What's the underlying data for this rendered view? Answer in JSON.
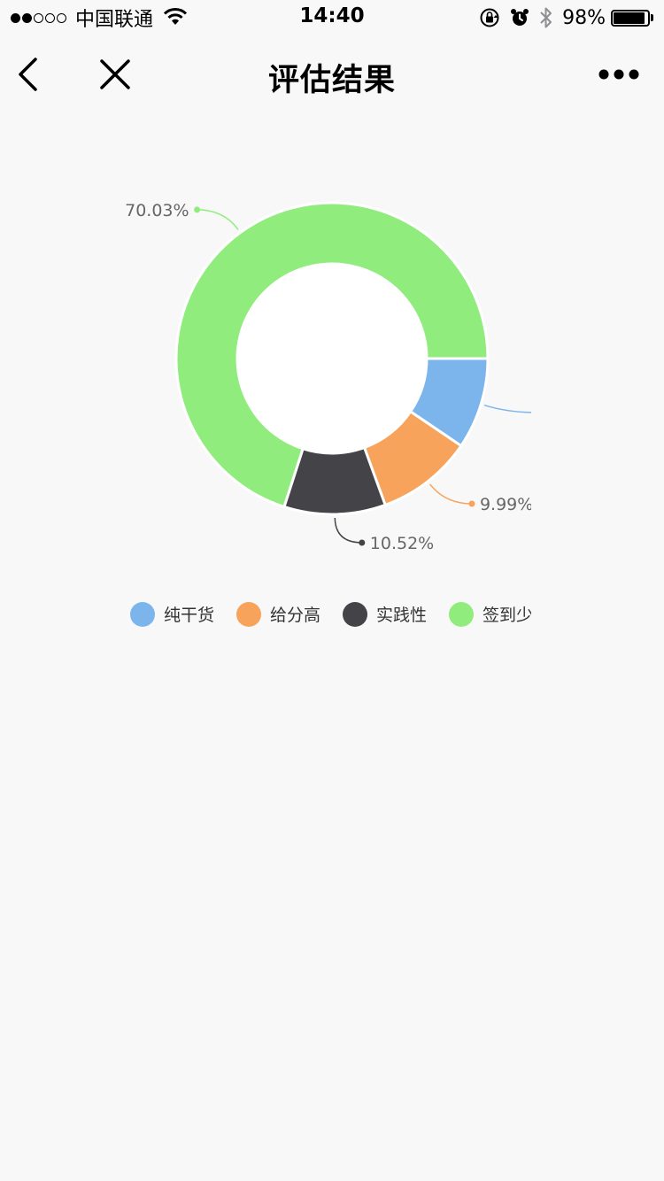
{
  "status_bar": {
    "carrier": "中国联通",
    "time": "14:40",
    "battery_percent": "98%",
    "battery_level": 0.98,
    "signal_strength": 2,
    "signal_max": 5
  },
  "nav": {
    "title": "评估结果",
    "back_icon": "chevron-left-icon",
    "close_icon": "close-icon",
    "more_icon": "more-icon"
  },
  "colors": {
    "background": "#f8f8f8",
    "series": [
      "#7cb5ec",
      "#f7a35c",
      "#434348",
      "#90ed7d"
    ],
    "label_text": "#666666"
  },
  "chart_data": {
    "type": "pie",
    "variant": "donut",
    "categories": [
      "纯干货",
      "给分高",
      "实践性",
      "签到少"
    ],
    "values": [
      9.46,
      9.99,
      10.52,
      70.03
    ],
    "labels": [
      "",
      "9.99%",
      "10.52%",
      "70.03%"
    ],
    "legend_position": "bottom",
    "title": ""
  }
}
